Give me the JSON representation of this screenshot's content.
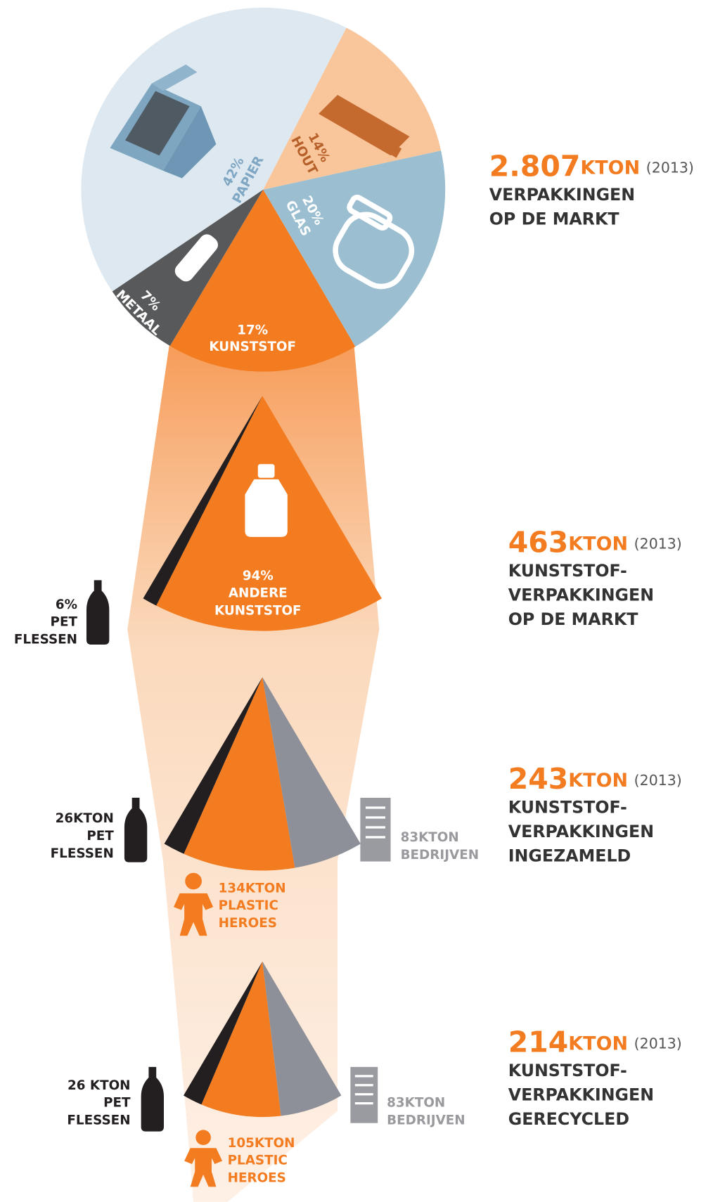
{
  "market": {
    "amount": "2.807",
    "unit": "KTON",
    "year": "(2013)",
    "lines": [
      "VERPAKKINGEN",
      "OP DE MARKT"
    ],
    "segments": [
      {
        "value": 42,
        "value_label": "42%",
        "name": "PAPIER",
        "color": "#dde8f0",
        "label_color": "#7fa6c2"
      },
      {
        "value": 14,
        "value_label": "14%",
        "name": "HOUT",
        "color": "#f9c59b",
        "label_color": "#b7612a"
      },
      {
        "value": 20,
        "value_label": "20%",
        "name": "GLAS",
        "color": "#9bbfd1",
        "label_color": "#ffffff"
      },
      {
        "value": 17,
        "value_label": "17%",
        "name": "KUNSTSTOF",
        "color": "#f37b20",
        "label_color": "#ffffff"
      },
      {
        "value": 7,
        "value_label": "7%",
        "name": "METAAL",
        "color": "#58595b",
        "label_color": "#ffffff"
      }
    ]
  },
  "stages": [
    {
      "amount": "463",
      "unit": "KTON",
      "year": "(2013)",
      "lines": [
        "KUNSTSTOF-",
        "VERPAKKINGEN",
        "OP DE MARKT"
      ],
      "segments": [
        {
          "value": 6,
          "label": [
            "6%",
            "PET",
            "FLESSEN"
          ],
          "color": "#231f20",
          "label_color": "#231f20"
        },
        {
          "value": 94,
          "label": [
            "94%",
            "ANDERE",
            "KUNSTSTOF"
          ],
          "color": "#f37b20",
          "label_color": "#ffffff"
        }
      ]
    },
    {
      "amount": "243",
      "unit": "KTON",
      "year": "(2013)",
      "lines": [
        "KUNSTSTOF-",
        "VERPAKKINGEN",
        "INGEZAMELD"
      ],
      "segments": [
        {
          "value": 26,
          "label": [
            "26KTON",
            "PET",
            "FLESSEN"
          ],
          "color": "#231f20",
          "label_color": "#231f20"
        },
        {
          "value": 134,
          "label": [
            "134KTON",
            "PLASTIC",
            "HEROES"
          ],
          "color": "#f37b20",
          "label_color": "#f37b20"
        },
        {
          "value": 83,
          "label": [
            "83KTON",
            "BEDRIJVEN"
          ],
          "color": "#8e9099",
          "label_color": "#9a9a9e"
        }
      ]
    },
    {
      "amount": "214",
      "unit": "KTON",
      "year": "(2013)",
      "lines": [
        "KUNSTSTOF-",
        "VERPAKKINGEN",
        "GERECYCLED"
      ],
      "segments": [
        {
          "value": 26,
          "label": [
            "26 KTON",
            "PET",
            "FLESSEN"
          ],
          "color": "#231f20",
          "label_color": "#231f20"
        },
        {
          "value": 105,
          "label": [
            "105KTON",
            "PLASTIC",
            "HEROES"
          ],
          "color": "#f37b20",
          "label_color": "#f37b20"
        },
        {
          "value": 83,
          "label": [
            "83KTON",
            "BEDRIJVEN"
          ],
          "color": "#8e9099",
          "label_color": "#9a9a9e"
        }
      ]
    }
  ]
}
